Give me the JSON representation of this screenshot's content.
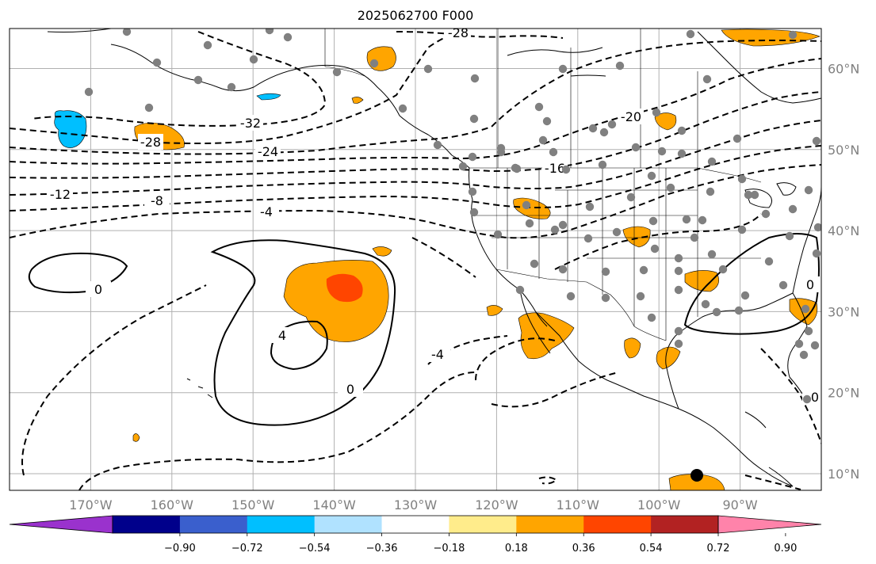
{
  "title": "2025062700 F000",
  "map": {
    "lon_range": [
      -180,
      -80
    ],
    "lat_range": [
      8,
      65
    ],
    "lon_ticks": [
      "170°W",
      "160°W",
      "150°W",
      "140°W",
      "130°W",
      "120°W",
      "110°W",
      "100°W",
      "90°W"
    ],
    "lat_ticks": [
      "60°N",
      "50°N",
      "40°N",
      "30°N",
      "20°N",
      "10°N"
    ],
    "grid": true
  },
  "contour_labels": [
    "-28",
    "-32",
    "-28",
    "-24",
    "-20",
    "-16",
    "-12",
    "-8",
    "-4",
    "0",
    "0",
    "4",
    "0",
    "-4",
    "0"
  ],
  "colorbar": {
    "ticks": [
      "−0.90",
      "−0.72",
      "−0.54",
      "−0.36",
      "−0.18",
      "0.18",
      "0.36",
      "0.54",
      "0.72",
      "0.90"
    ],
    "colors": [
      "#9a32cd",
      "#00008b",
      "#3a5fcd",
      "#00bfff",
      "#b0e2ff",
      "#ffffff",
      "#ffec8b",
      "#ffa500",
      "#ff4500",
      "#b22222",
      "#ff83aa"
    ]
  }
}
